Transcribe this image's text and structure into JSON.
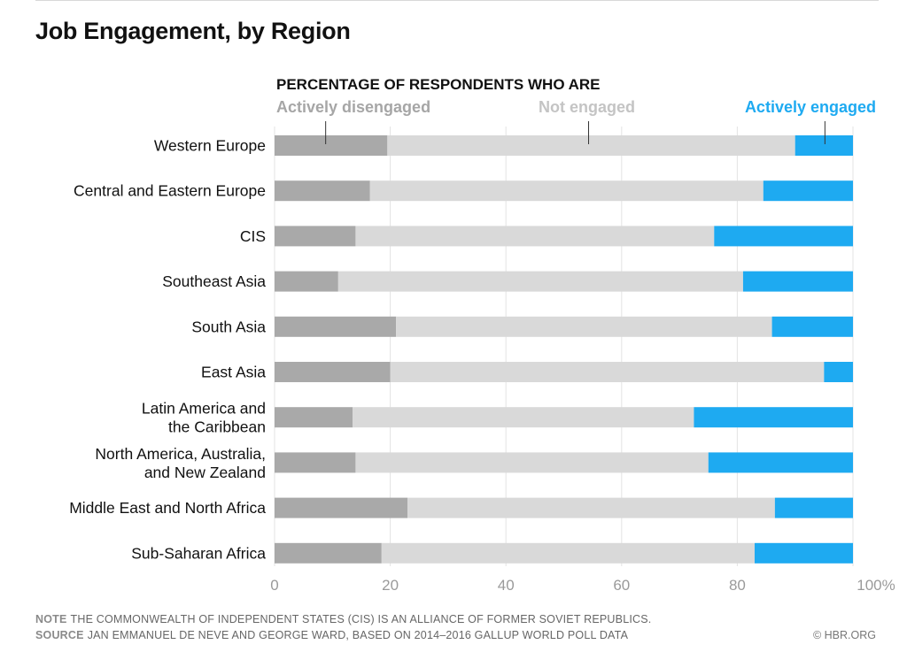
{
  "chart_data": {
    "type": "bar",
    "orientation": "horizontal",
    "stacked": true,
    "title": "Job Engagement, by Region",
    "legend_title": "PERCENTAGE OF RESPONDENTS WHO ARE",
    "legend_placement": "top",
    "categories": [
      [
        "Western Europe"
      ],
      [
        "Central and Eastern Europe"
      ],
      [
        "CIS"
      ],
      [
        "Southeast Asia"
      ],
      [
        "South Asia"
      ],
      [
        "East Asia"
      ],
      [
        "Latin America and",
        "the Caribbean"
      ],
      [
        "North America, Australia,",
        "and New Zealand"
      ],
      [
        "Middle East and North Africa"
      ],
      [
        "Sub-Saharan Africa"
      ]
    ],
    "series": [
      {
        "name": "Actively disengaged",
        "color": "#a9a9a9",
        "values": [
          19.5,
          16.5,
          14,
          11,
          21,
          20,
          13.5,
          14,
          23,
          18.5
        ]
      },
      {
        "name": "Not engaged",
        "color": "#d9d9d9",
        "values": [
          70.5,
          68,
          62,
          70,
          65,
          75,
          59,
          61,
          63.5,
          64.5
        ]
      },
      {
        "name": "Actively engaged",
        "color": "#1eaaf1",
        "values": [
          10,
          15.5,
          24,
          19,
          14,
          5,
          27.5,
          25,
          13.5,
          17
        ]
      }
    ],
    "xlim": [
      0,
      100
    ],
    "xticks": [
      "0",
      "20",
      "40",
      "60",
      "80",
      "100%"
    ],
    "xtick_values": [
      0,
      20,
      40,
      60,
      80,
      100
    ],
    "grid": true
  },
  "footer": {
    "note_label": "NOTE",
    "note_text": "THE COMMONWEALTH OF INDEPENDENT STATES (CIS) IS AN ALLIANCE OF FORMER SOVIET REPUBLICS.",
    "source_label": "SOURCE",
    "source_text": "JAN EMMANUEL DE NEVE AND GEORGE WARD, BASED ON 2014–2016 GALLUP WORLD POLL DATA",
    "credit": "© HBR.ORG"
  }
}
